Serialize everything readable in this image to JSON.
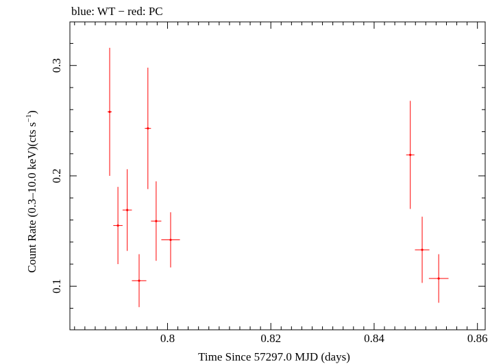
{
  "chart_data": {
    "type": "scatter",
    "title": "blue: WT − red: PC",
    "xlabel": "Time Since 57297.0 MJD (days)",
    "ylabel_main": "Count Rate (0.3–10.0 keV)(cts s",
    "ylabel_sup": "−1",
    "ylabel_close": ")",
    "xlim": [
      0.7811,
      0.8615
    ],
    "ylim": [
      0.0605,
      0.3395
    ],
    "x_ticks": [
      0.8,
      0.82,
      0.84,
      0.86
    ],
    "x_tick_labels": [
      "0.8",
      "0.82",
      "0.84",
      "0.86"
    ],
    "y_ticks": [
      0.1,
      0.2,
      0.3
    ],
    "y_tick_labels": [
      "0.1",
      "0.2",
      "0.3"
    ],
    "x_minor_step": 0.002,
    "y_minor_step": 0.02,
    "grid": false,
    "series": [
      {
        "color": "#ff0000",
        "points": [
          {
            "x": 0.7888,
            "xerr": 0.0004,
            "y": 0.258,
            "yerr_lo": 0.058,
            "yerr_hi": 0.058
          },
          {
            "x": 0.7904,
            "xerr": 0.0009,
            "y": 0.155,
            "yerr_lo": 0.035,
            "yerr_hi": 0.035
          },
          {
            "x": 0.7922,
            "xerr": 0.0009,
            "y": 0.169,
            "yerr_lo": 0.037,
            "yerr_hi": 0.037
          },
          {
            "x": 0.7945,
            "xerr": 0.0014,
            "y": 0.105,
            "yerr_lo": 0.024,
            "yerr_hi": 0.024
          },
          {
            "x": 0.7962,
            "xerr": 0.0006,
            "y": 0.243,
            "yerr_lo": 0.055,
            "yerr_hi": 0.055
          },
          {
            "x": 0.7978,
            "xerr": 0.001,
            "y": 0.159,
            "yerr_lo": 0.036,
            "yerr_hi": 0.036
          },
          {
            "x": 0.8006,
            "xerr": 0.0018,
            "y": 0.142,
            "yerr_lo": 0.025,
            "yerr_hi": 0.025
          },
          {
            "x": 0.847,
            "xerr": 0.0008,
            "y": 0.219,
            "yerr_lo": 0.049,
            "yerr_hi": 0.049
          },
          {
            "x": 0.8493,
            "xerr": 0.0014,
            "y": 0.133,
            "yerr_lo": 0.03,
            "yerr_hi": 0.03
          },
          {
            "x": 0.8525,
            "xerr": 0.0019,
            "y": 0.107,
            "yerr_lo": 0.022,
            "yerr_hi": 0.022
          }
        ]
      }
    ]
  }
}
